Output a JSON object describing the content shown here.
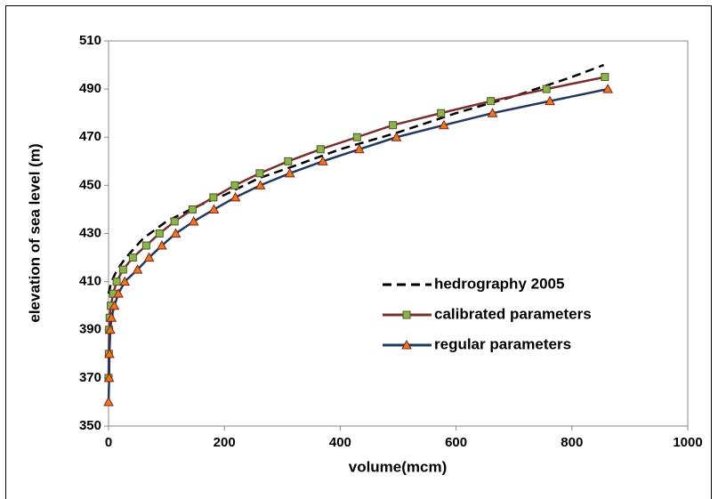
{
  "chart_data": {
    "type": "line",
    "xlabel": "volume(mcm)",
    "ylabel": "elevation of sea level (m)",
    "xlim": [
      0,
      1000
    ],
    "xticks": [
      0,
      200,
      400,
      600,
      800,
      1000
    ],
    "ylim": [
      350,
      510
    ],
    "yticks": [
      350,
      370,
      390,
      410,
      430,
      450,
      470,
      490,
      510
    ],
    "grid": false,
    "legend": "center right",
    "series": [
      {
        "name": "hedrography 2005",
        "color": "#000000",
        "dash": true,
        "marker": "none",
        "x": [
          0,
          5,
          15,
          30,
          60,
          100,
          150,
          200,
          260,
          320,
          400,
          500,
          600,
          700,
          800,
          855
        ],
        "values": [
          405,
          410,
          415,
          420,
          428,
          435,
          441,
          446,
          453,
          458,
          465,
          472,
          480,
          487,
          495,
          500
        ]
      },
      {
        "name": "calibrated parameters",
        "color": "#7b2f2c",
        "marker": "square",
        "marker_color": "#8cb44a",
        "x": [
          0,
          0.5,
          1,
          2,
          4,
          8,
          14,
          25,
          42,
          65,
          88,
          114,
          145,
          181,
          218,
          261,
          310,
          366,
          429,
          491,
          574,
          660,
          756,
          857
        ],
        "values": [
          370,
          380,
          390,
          395,
          400,
          405,
          410,
          415,
          420,
          425,
          430,
          435,
          440,
          445,
          450,
          455,
          460,
          465,
          470,
          475,
          480,
          485,
          490,
          495
        ]
      },
      {
        "name": "regular parameters",
        "color": "#1f3a60",
        "marker": "triangle",
        "marker_color": "#e57a22",
        "x": [
          0,
          1,
          1.5,
          3,
          5,
          10,
          17,
          28,
          50,
          70,
          92,
          116,
          147,
          182,
          219,
          262,
          313,
          370,
          433,
          497,
          579,
          663,
          762,
          862
        ],
        "values": [
          360,
          370,
          380,
          390,
          395,
          400,
          405,
          410,
          415,
          420,
          425,
          430,
          435,
          440,
          445,
          450,
          455,
          460,
          465,
          470,
          475,
          480,
          485,
          490
        ]
      }
    ]
  }
}
